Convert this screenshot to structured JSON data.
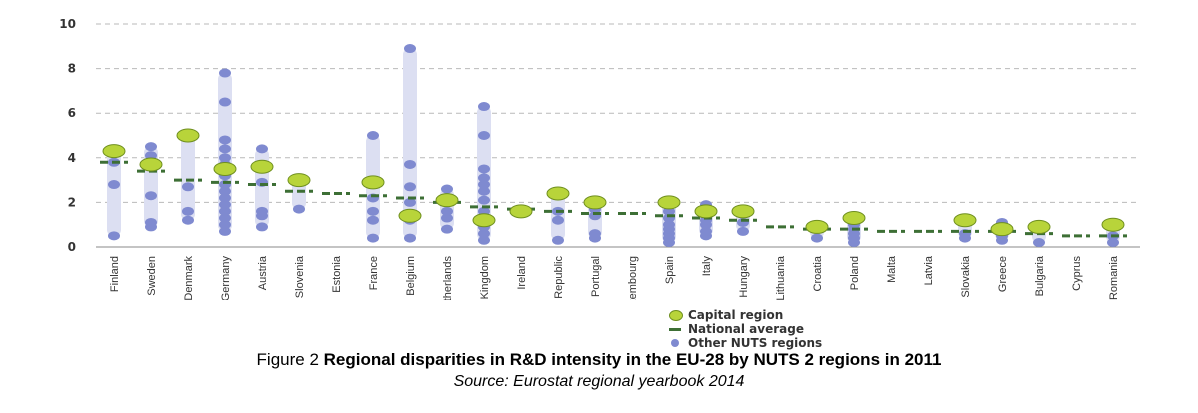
{
  "chart_data": {
    "type": "scatter",
    "ylim": [
      0,
      10
    ],
    "yticks": [
      0,
      2,
      4,
      6,
      8,
      10
    ],
    "grid": true,
    "legend_position": "bottom-center",
    "categories": [
      "Finland",
      "Sweden",
      "Denmark",
      "Germany",
      "Austria",
      "Slovenia",
      "Estonia",
      "France",
      "Belgium",
      "Netherlands",
      "United Kingdom",
      "Ireland",
      "Czech Republic",
      "Portugal",
      "Luxembourg",
      "Spain",
      "Italy",
      "Hungary",
      "Lithuania",
      "Croatia",
      "Poland",
      "Malta",
      "Latvia",
      "Slovakia",
      "Greece",
      "Bulgaria",
      "Cyprus",
      "Romania"
    ],
    "series": [
      {
        "name": "Capital region",
        "values": [
          4.3,
          3.7,
          5.0,
          3.5,
          3.6,
          3.0,
          null,
          2.9,
          1.4,
          2.1,
          1.2,
          1.6,
          2.4,
          2.0,
          null,
          2.0,
          1.6,
          1.6,
          null,
          0.9,
          1.3,
          null,
          null,
          1.2,
          0.8,
          0.9,
          null,
          1.0
        ]
      },
      {
        "name": "National average",
        "values": [
          3.8,
          3.4,
          3.0,
          2.9,
          2.8,
          2.5,
          2.4,
          2.3,
          2.2,
          2.0,
          1.8,
          1.7,
          1.6,
          1.5,
          1.5,
          1.4,
          1.3,
          1.2,
          0.9,
          0.8,
          0.8,
          0.7,
          0.7,
          0.7,
          0.7,
          0.6,
          0.5,
          0.5
        ]
      },
      {
        "name": "Other NUTS regions",
        "values": [
          [
            0.5,
            2.8,
            3.8
          ],
          [
            0.9,
            1.1,
            2.3,
            4.1,
            4.5
          ],
          [
            1.2,
            1.6,
            2.7
          ],
          [
            0.7,
            1.0,
            1.3,
            1.6,
            1.9,
            2.2,
            2.5,
            2.8,
            3.2,
            3.7,
            4.0,
            4.4,
            4.8,
            6.5,
            7.8
          ],
          [
            0.9,
            1.4,
            1.6,
            2.9,
            4.4
          ],
          [
            1.7
          ],
          [],
          [
            0.4,
            1.2,
            1.6,
            2.2,
            2.8,
            5.0
          ],
          [
            0.4,
            1.2,
            2.0,
            2.7,
            3.7,
            8.9
          ],
          [
            0.8,
            1.3,
            1.6,
            2.2,
            2.6
          ],
          [
            0.3,
            0.6,
            0.9,
            1.6,
            2.1,
            2.5,
            2.8,
            3.1,
            3.5,
            5.0,
            6.3
          ],
          [
            1.7
          ],
          [
            0.3,
            1.2,
            1.6
          ],
          [
            0.4,
            0.6,
            1.4,
            1.7
          ],
          [],
          [
            0.2,
            0.4,
            0.6,
            0.8,
            1.0,
            1.3,
            1.6,
            2.1
          ],
          [
            0.5,
            0.7,
            1.0,
            1.2,
            1.4,
            1.9
          ],
          [
            0.7,
            1.1,
            1.5
          ],
          [],
          [
            0.4
          ],
          [
            0.2,
            0.4,
            0.6,
            0.8,
            1.0
          ],
          [],
          [],
          [
            0.4,
            0.6
          ],
          [
            0.3,
            0.5,
            0.7,
            0.9,
            1.1
          ],
          [
            0.2
          ],
          [],
          [
            0.2,
            0.5
          ]
        ]
      }
    ]
  },
  "legend": {
    "capital": "Capital region",
    "national": "National average",
    "other": "Other NUTS regions"
  },
  "caption": {
    "prefix": "Figure 2 ",
    "title": "Regional disparities in R&D intensity in the EU-28 by NUTS 2 regions in 2011",
    "source": "Source: Eurostat regional yearbook 2014"
  },
  "colors": {
    "range_bar": "#dcdff2",
    "capital_fill": "#b8d43a",
    "capital_stroke": "#6f8f1f",
    "national_line": "#3d6f35",
    "other_dot": "#7f8ad0",
    "grid": "#b9b9b9",
    "axis_text": "#333333"
  }
}
